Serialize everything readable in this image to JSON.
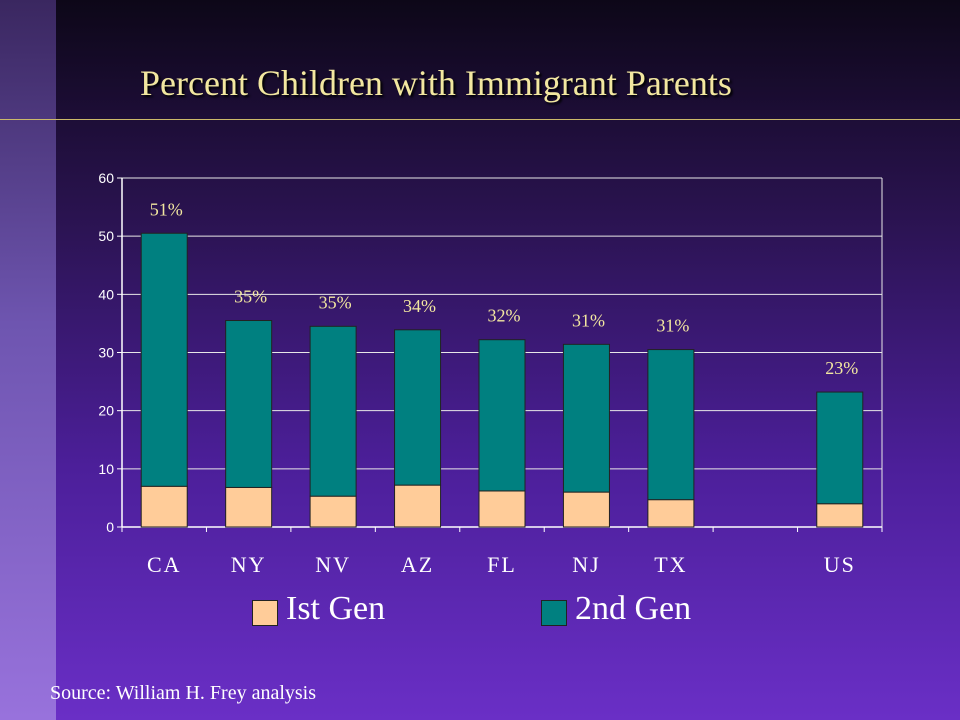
{
  "title": "Percent Children with Immigrant Parents",
  "source": "Source: William H. Frey analysis",
  "colors": {
    "first_gen": "#ffcc99",
    "second_gen": "#008080",
    "title": "#f2e7a0",
    "data_label": "#f2e7a0"
  },
  "legend": {
    "first_gen_label": "Ist Gen",
    "second_gen_label": "2nd Gen"
  },
  "chart_data": {
    "type": "bar",
    "stacked": true,
    "categories": [
      "CA",
      "NY",
      "NV",
      "AZ",
      "FL",
      "NJ",
      "TX",
      "",
      "US"
    ],
    "series": [
      {
        "name": "Ist Gen",
        "values": [
          7,
          6.8,
          5.3,
          7.2,
          6.2,
          6,
          4.7,
          null,
          4
        ]
      },
      {
        "name": "2nd Gen",
        "values": [
          43.5,
          28.7,
          29.2,
          26.7,
          26,
          25.4,
          25.8,
          null,
          19.2
        ]
      }
    ],
    "data_labels": [
      "51%",
      "35%",
      "35%",
      "34%",
      "32%",
      "31%",
      "31%",
      "",
      "23%"
    ],
    "ylim": [
      0,
      60
    ],
    "yticks": [
      0,
      10,
      20,
      30,
      40,
      50,
      60
    ],
    "grid": true,
    "legend_position": "bottom"
  }
}
